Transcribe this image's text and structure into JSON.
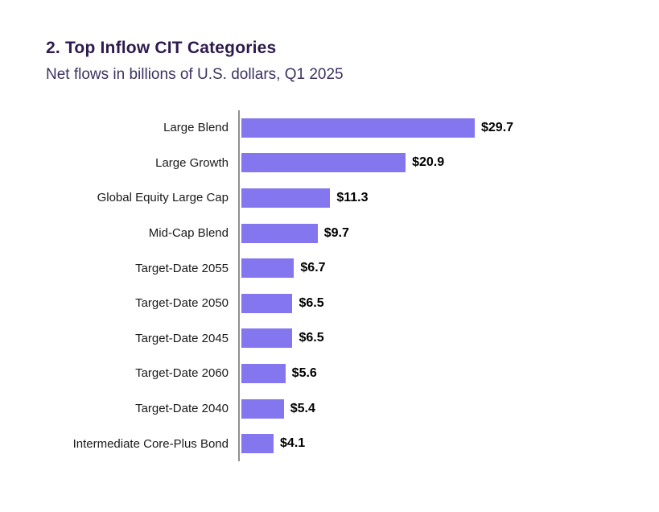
{
  "page": {
    "background": "#ffffff"
  },
  "header": {
    "title": "2. Top Inflow CIT Categories",
    "subtitle": "Net flows in billions of U.S. dollars, Q1 2025"
  },
  "colors": {
    "title": "#2e1a4d",
    "subtitle": "#3d3261",
    "bar": "#8476ee",
    "axis": "#8f8f8f",
    "label": "#1a1a1a",
    "value": "#000000"
  },
  "chart_data": {
    "type": "bar",
    "orientation": "horizontal",
    "title": "2. Top Inflow CIT Categories",
    "subtitle": "Net flows in billions of U.S. dollars, Q1 2025",
    "unit": "billions of U.S. dollars",
    "period": "Q1 2025",
    "categories": [
      "Large Blend",
      "Large Growth",
      "Global Equity Large Cap",
      "Mid-Cap Blend",
      "Target-Date 2055",
      "Target-Date 2050",
      "Target-Date 2045",
      "Target-Date 2060",
      "Target-Date 2040",
      "Intermediate Core-Plus Bond"
    ],
    "values": [
      29.7,
      20.9,
      11.3,
      9.7,
      6.7,
      6.5,
      6.5,
      5.6,
      5.4,
      4.1
    ],
    "value_labels": [
      "$29.7",
      "$20.9",
      "$11.3",
      "$9.7",
      "$6.7",
      "$6.5",
      "$6.5",
      "$5.6",
      "$5.4",
      "$4.1"
    ],
    "xlabel": "",
    "ylabel": "",
    "xlim": [
      0,
      30
    ],
    "grid": false,
    "legend": false,
    "value_label_position": "end-of-bar"
  }
}
